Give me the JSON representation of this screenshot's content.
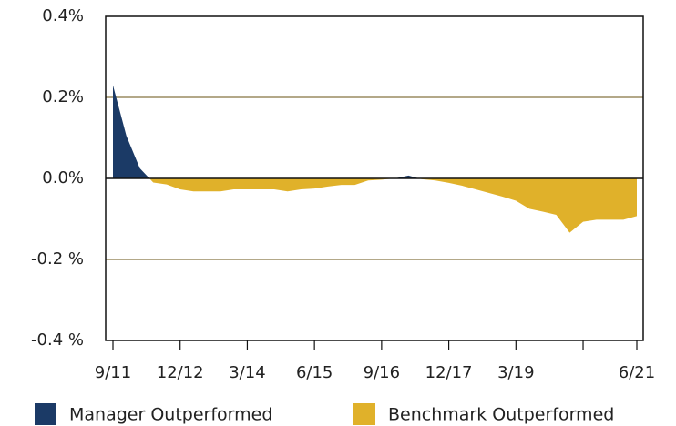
{
  "chart_data": {
    "type": "area",
    "x": [
      "9/11",
      "12/11",
      "3/12",
      "6/12",
      "9/12",
      "12/12",
      "3/13",
      "6/13",
      "9/13",
      "12/13",
      "3/14",
      "6/14",
      "9/14",
      "12/14",
      "3/15",
      "6/15",
      "9/15",
      "12/15",
      "3/16",
      "6/16",
      "9/16",
      "12/16",
      "3/17",
      "6/17",
      "9/17",
      "12/17",
      "3/18",
      "6/18",
      "9/18",
      "12/18",
      "3/19",
      "6/19",
      "9/19",
      "12/19",
      "3/20",
      "6/20",
      "9/20",
      "12/20",
      "3/21",
      "6/21"
    ],
    "series": [
      {
        "values": [
          0.23,
          0.105,
          0.025,
          -0.01,
          -0.015,
          -0.027,
          -0.032,
          -0.032,
          -0.032,
          -0.027,
          -0.027,
          -0.027,
          -0.027,
          -0.032,
          -0.027,
          -0.025,
          -0.02,
          -0.016,
          -0.016,
          -0.005,
          -0.003,
          0,
          0.007,
          -0.002,
          -0.005,
          -0.011,
          -0.018,
          -0.027,
          -0.036,
          -0.045,
          -0.055,
          -0.075,
          -0.082,
          -0.09,
          -0.134,
          -0.107,
          -0.102,
          -0.102,
          -0.102,
          -0.093
        ]
      }
    ],
    "legend": [
      {
        "name": "Manager Outperformed",
        "color": "#1b3a66"
      },
      {
        "name": "Benchmark Outperformed",
        "color": "#e0b12a"
      }
    ],
    "ylim": [
      -0.4,
      0.4
    ],
    "yticks": [
      {
        "value": -0.4,
        "label": "-0.4 %"
      },
      {
        "value": -0.2,
        "label": "-0.2 %"
      },
      {
        "value": 0,
        "label": "0.0%"
      },
      {
        "value": 0.2,
        "label": "0.2%"
      },
      {
        "value": 0.4,
        "label": "0.4%"
      }
    ],
    "xticks": [
      {
        "value": "9/11",
        "label": "9/11"
      },
      {
        "value": "12/12",
        "label": "12/12"
      },
      {
        "value": "3/14",
        "label": "3/14"
      },
      {
        "value": "6/15",
        "label": "6/15"
      },
      {
        "value": "9/16",
        "label": "9/16"
      },
      {
        "value": "12/17",
        "label": "12/17"
      },
      {
        "value": "3/19",
        "label": "3/19"
      },
      {
        "value": "6/20"
      },
      {
        "value": "6/21",
        "label": "6/21"
      }
    ],
    "grid": true
  }
}
